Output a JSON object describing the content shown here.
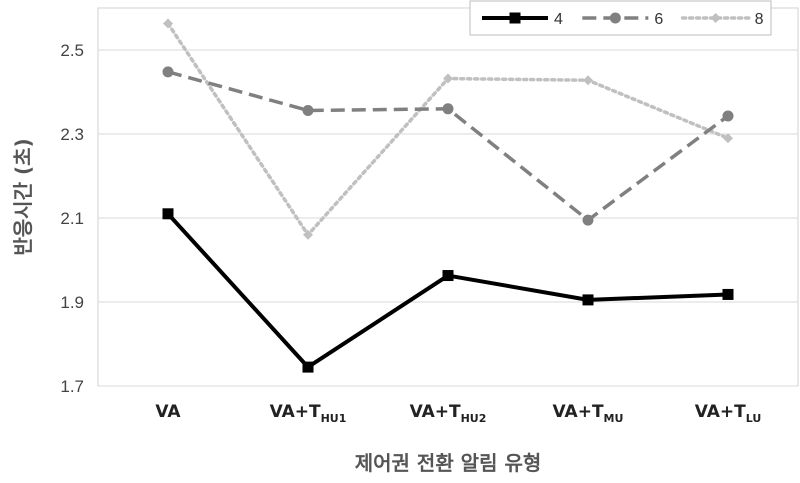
{
  "chart_data": {
    "type": "line",
    "title": "",
    "xlabel": "제어권 전환 알림 유형",
    "ylabel": "반응시간 (초)",
    "ylim": [
      1.7,
      2.6
    ],
    "yticks": [
      "1.7",
      "1.9",
      "2.1",
      "2.3",
      "2.5"
    ],
    "categories": [
      {
        "main": "VA",
        "sub": ""
      },
      {
        "main": "VA+T",
        "sub": "HU1"
      },
      {
        "main": "VA+T",
        "sub": "HU2"
      },
      {
        "main": "VA+T",
        "sub": "MU"
      },
      {
        "main": "VA+T",
        "sub": "LU"
      }
    ],
    "grid": "horizontal",
    "legend_position": "top-right",
    "series": [
      {
        "name": "4",
        "values": [
          2.11,
          1.745,
          1.963,
          1.905,
          1.918
        ],
        "color": "#000000",
        "style": "solid",
        "marker": "square"
      },
      {
        "name": "6",
        "values": [
          2.448,
          2.356,
          2.36,
          2.095,
          2.343
        ],
        "color": "#808080",
        "style": "dashed",
        "marker": "circle"
      },
      {
        "name": "8",
        "values": [
          2.563,
          2.06,
          2.432,
          2.428,
          2.29
        ],
        "color": "#c0c0c0",
        "style": "dotted",
        "marker": "diamond"
      }
    ]
  }
}
